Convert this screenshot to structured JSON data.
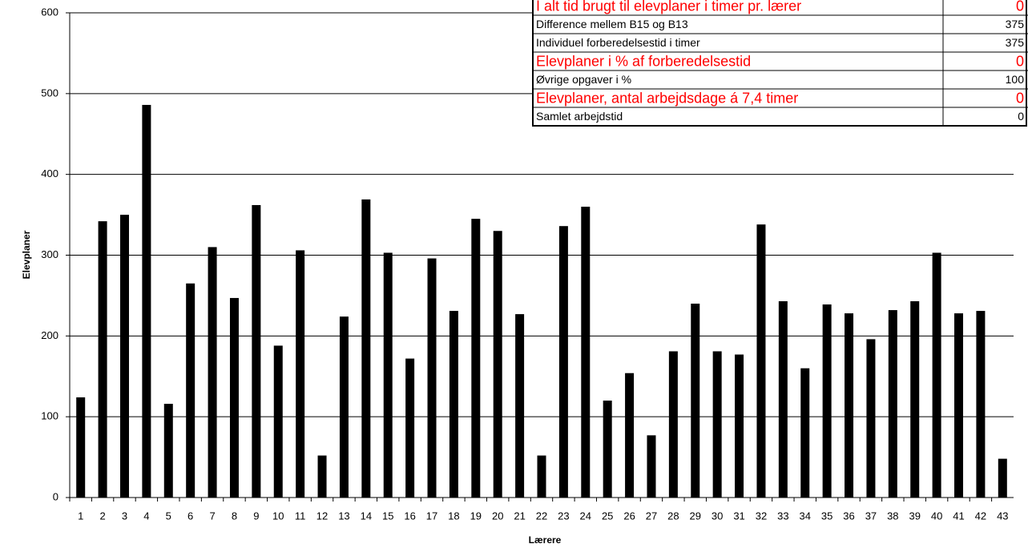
{
  "chart_data": {
    "type": "bar",
    "x_label": "Lærere",
    "y_label": "Elevplaner",
    "categories": [
      "1",
      "2",
      "3",
      "4",
      "5",
      "6",
      "7",
      "8",
      "9",
      "10",
      "11",
      "12",
      "13",
      "14",
      "15",
      "16",
      "17",
      "18",
      "19",
      "20",
      "21",
      "22",
      "23",
      "24",
      "25",
      "26",
      "27",
      "28",
      "29",
      "30",
      "31",
      "32",
      "33",
      "34",
      "35",
      "36",
      "37",
      "38",
      "39",
      "40",
      "41",
      "42",
      "43"
    ],
    "values": [
      124,
      342,
      350,
      486,
      116,
      265,
      310,
      247,
      362,
      188,
      306,
      52,
      224,
      369,
      303,
      172,
      296,
      231,
      345,
      330,
      227,
      52,
      336,
      360,
      120,
      154,
      77,
      181,
      240,
      181,
      177,
      338,
      243,
      160,
      239,
      228,
      196,
      232,
      243,
      303,
      228,
      231,
      48
    ],
    "color": "#000000",
    "ylim": [
      0,
      600
    ],
    "yticks": [
      0,
      100,
      200,
      300,
      400,
      500,
      600
    ],
    "grid": true
  },
  "table": {
    "rows": [
      {
        "label": "I alt tid brugt til elevplaner i timer pr. lærer",
        "value": 0,
        "color": "#ff0000"
      },
      {
        "label": "Difference mellem B15 og B13",
        "value": 375,
        "color": "#000000"
      },
      {
        "label": "Individuel forberedelsestid i timer",
        "value": 375,
        "color": "#000000"
      },
      {
        "label": "Elevplaner i % af forberedelsestid",
        "value": 0,
        "color": "#ff0000"
      },
      {
        "label": "Øvrige opgaver i %",
        "value": 100,
        "color": "#000000"
      },
      {
        "label": "Elevplaner, antal arbejdsdage á 7,4 timer",
        "value": 0,
        "color": "#ff0000"
      },
      {
        "label": "Samlet arbejdstid",
        "value": 0,
        "color": "#000000"
      }
    ]
  }
}
